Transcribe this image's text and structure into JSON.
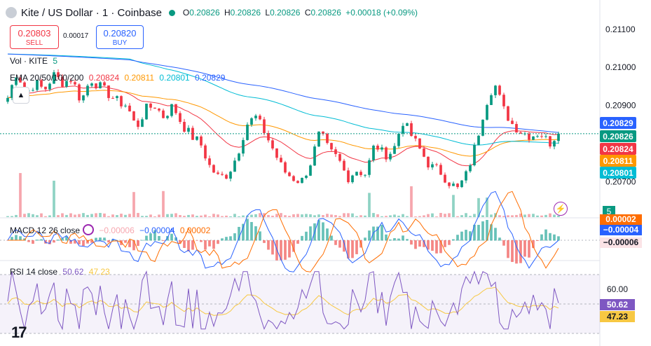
{
  "header": {
    "symbol": "Kite / US Dollar · 1 · Coinbase",
    "o_label": "O",
    "o": "0.20826",
    "h_label": "H",
    "h": "0.20826",
    "l_label": "L",
    "l": "0.20826",
    "c_label": "C",
    "c": "0.20826",
    "change": "+0.00018 (+0.09%)"
  },
  "trade": {
    "sell_price": "0.20803",
    "sell_label": "SELL",
    "spread": "0.00017",
    "buy_price": "0.20820",
    "buy_label": "BUY"
  },
  "volume_legend": {
    "label": "Vol · KITE",
    "value": "5"
  },
  "ema_legend": {
    "label": "EMA 20/50/100/200",
    "v20": "0.20824",
    "v50": "0.20811",
    "v100": "0.20801",
    "v200": "0.20829"
  },
  "macd_legend": {
    "label": "MACD 12 26 close",
    "hist": "−0.00006",
    "macd": "−0.00004",
    "signal": "0.00002"
  },
  "rsi_legend": {
    "label": "RSI 14 close",
    "rsi": "50.62",
    "ma": "47.23"
  },
  "colors": {
    "up": "#089981",
    "down": "#f23645",
    "ema20": "#f23645",
    "ema50": "#ff9800",
    "ema100": "#00bcd4",
    "ema200": "#2962ff",
    "rsi": "#7e57c2",
    "rsi_ma": "#f7c843",
    "macd": "#2962ff",
    "signal": "#ff6d00"
  },
  "chart_data": [
    {
      "type": "candlestick",
      "title": "Kite / US Dollar · 1 · Coinbase",
      "ylim": [
        0.2064,
        0.2114
      ],
      "y_ticks": [
        "0.21100",
        "0.21000",
        "0.20900",
        "0.20700"
      ],
      "price_tags": [
        {
          "text": "0.20829",
          "color": "#2962ff",
          "value": 0.20829
        },
        {
          "text": "0.20826",
          "color": "#089981",
          "value": 0.20826
        },
        {
          "text": "0.20824",
          "color": "#f23645",
          "value": 0.20824
        },
        {
          "text": "0.20811",
          "color": "#ff9800",
          "value": 0.20811
        },
        {
          "text": "0.20801",
          "color": "#00bcd4",
          "value": 0.20801
        }
      ],
      "close_approx": [
        0.2092,
        0.2099,
        0.2093,
        0.2096,
        0.2094,
        0.2098,
        0.2096,
        0.2097,
        0.2091,
        0.2097,
        0.2095,
        0.2093,
        0.2091,
        0.209,
        0.2084,
        0.2089,
        0.209,
        0.2087,
        0.209,
        0.2085,
        0.2082,
        0.208,
        0.2074,
        0.2071,
        0.2072,
        0.2077,
        0.2085,
        0.2087,
        0.2083,
        0.2078,
        0.2073,
        0.2071,
        0.207,
        0.2075,
        0.2083,
        0.2078,
        0.2076,
        0.2071,
        0.2073,
        0.2072,
        0.208,
        0.2077,
        0.2078,
        0.2086,
        0.2082,
        0.2078,
        0.2074,
        0.2073,
        0.207,
        0.2068,
        0.2072,
        0.208,
        0.209,
        0.2096,
        0.2089,
        0.2085,
        0.2083,
        0.2082,
        0.2083,
        0.208,
        0.2083
      ],
      "series": [
        {
          "name": "EMA 20",
          "last": 0.20824
        },
        {
          "name": "EMA 50",
          "last": 0.20811
        },
        {
          "name": "EMA 100",
          "last": 0.20801
        },
        {
          "name": "EMA 200",
          "last": 0.20829
        }
      ]
    },
    {
      "type": "bar",
      "title": "Vol · KITE",
      "last": 5
    },
    {
      "type": "bar",
      "title": "MACD 12 26 close",
      "series": [
        {
          "name": "Histogram",
          "last": -6e-05
        },
        {
          "name": "MACD",
          "last": -4e-05
        },
        {
          "name": "Signal",
          "last": 2e-05
        }
      ],
      "tags": [
        {
          "text": "0.00002",
          "color": "#ff6d00"
        },
        {
          "text": "−0.00004",
          "color": "#2962ff"
        },
        {
          "text": "−0.00006",
          "color": "#f23645"
        }
      ]
    },
    {
      "type": "line",
      "title": "RSI 14 close",
      "ylim": [
        30,
        70
      ],
      "y_ticks": [
        "60.00"
      ],
      "series": [
        {
          "name": "RSI",
          "last": 50.62
        },
        {
          "name": "RSI MA",
          "last": 47.23
        }
      ]
    }
  ]
}
